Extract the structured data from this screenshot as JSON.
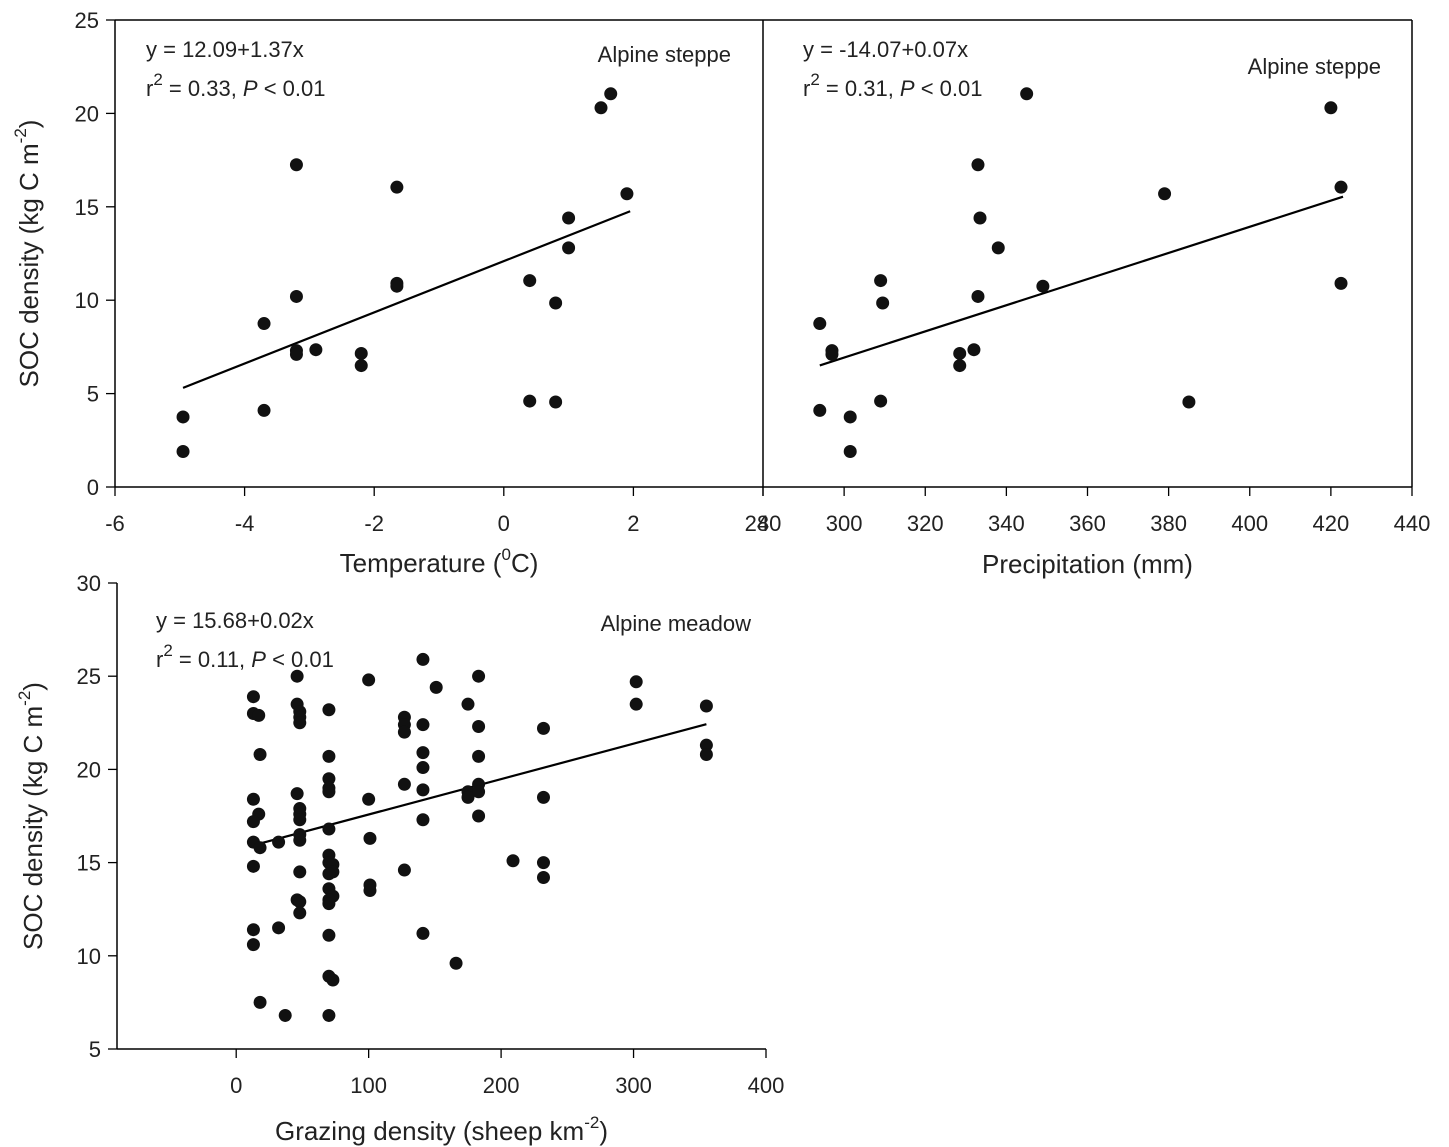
{
  "chart_data": [
    {
      "type": "scatter",
      "title": "Alpine steppe",
      "xlabel": "Temperature (°C)",
      "xlabel_parts": {
        "pre": "Temperature (",
        "sup": "0",
        "post": "C)"
      },
      "ylabel": "SOC density (kg C m⁻²)",
      "ylabel_parts": {
        "pre": "SOC density (kg C m",
        "sup": "-2",
        "post": ")"
      },
      "xlim": [
        -6,
        4
      ],
      "ylim": [
        0,
        25
      ],
      "xticks": [
        -6,
        -4,
        -2,
        0,
        2,
        4
      ],
      "yticks": [
        0,
        5,
        10,
        15,
        20,
        25
      ],
      "xticklabels": [
        "-6",
        "-4",
        "-2",
        "0",
        "2",
        "4"
      ],
      "yticklabels": [
        "0",
        "5",
        "10",
        "15",
        "20",
        "25"
      ],
      "equation": "y = 12.09+1.37x",
      "stats": {
        "r_prefix": "r",
        "r_sup": "2",
        "r_value": " = 0.33, ",
        "p_label": "P",
        "p_value": " < 0.01"
      },
      "grid": false,
      "fit": {
        "intercept": 12.09,
        "slope": 1.37,
        "x_range": [
          -4.95,
          1.95
        ]
      },
      "points": [
        {
          "x": -4.95,
          "y": 3.75
        },
        {
          "x": -4.95,
          "y": 1.9
        },
        {
          "x": -3.7,
          "y": 8.75
        },
        {
          "x": -3.7,
          "y": 4.1
        },
        {
          "x": -3.2,
          "y": 17.25
        },
        {
          "x": -3.2,
          "y": 10.2
        },
        {
          "x": -3.2,
          "y": 7.3
        },
        {
          "x": -3.2,
          "y": 7.1
        },
        {
          "x": -2.9,
          "y": 7.35
        },
        {
          "x": -2.2,
          "y": 7.15
        },
        {
          "x": -2.2,
          "y": 6.5
        },
        {
          "x": -1.65,
          "y": 16.05
        },
        {
          "x": -1.65,
          "y": 10.9
        },
        {
          "x": -1.65,
          "y": 10.75
        },
        {
          "x": 0.4,
          "y": 11.05
        },
        {
          "x": 0.4,
          "y": 4.6
        },
        {
          "x": 0.8,
          "y": 9.85
        },
        {
          "x": 0.8,
          "y": 4.55
        },
        {
          "x": 1.0,
          "y": 14.4
        },
        {
          "x": 1.0,
          "y": 12.8
        },
        {
          "x": 1.5,
          "y": 20.3
        },
        {
          "x": 1.65,
          "y": 21.05
        },
        {
          "x": 1.9,
          "y": 15.7
        }
      ]
    },
    {
      "type": "scatter",
      "title": "Alpine steppe",
      "xlabel": "Precipitation (mm)",
      "ylabel": "",
      "xlim": [
        280,
        440
      ],
      "ylim": [
        0,
        25
      ],
      "xticks": [
        280,
        300,
        320,
        340,
        360,
        380,
        400,
        420,
        440
      ],
      "xticklabels": [
        "280",
        "300",
        "320",
        "340",
        "360",
        "380",
        "400",
        "420",
        "440"
      ],
      "equation": "y = -14.07+0.07x",
      "stats": {
        "r_prefix": "r",
        "r_sup": "2",
        "r_value": " = 0.31, ",
        "p_label": "P",
        "p_value": " < 0.01"
      },
      "grid": false,
      "fit": {
        "intercept": -14.07,
        "slope": 0.07,
        "x_range": [
          294,
          423
        ]
      },
      "points": [
        {
          "x": 294,
          "y": 8.75
        },
        {
          "x": 294,
          "y": 4.1
        },
        {
          "x": 297,
          "y": 7.3
        },
        {
          "x": 297,
          "y": 7.1
        },
        {
          "x": 301.5,
          "y": 3.75
        },
        {
          "x": 301.5,
          "y": 1.9
        },
        {
          "x": 309,
          "y": 11.05
        },
        {
          "x": 309,
          "y": 4.6
        },
        {
          "x": 309.5,
          "y": 9.85
        },
        {
          "x": 328.5,
          "y": 7.15
        },
        {
          "x": 328.5,
          "y": 6.5
        },
        {
          "x": 332,
          "y": 7.35
        },
        {
          "x": 333,
          "y": 17.25
        },
        {
          "x": 333,
          "y": 10.2
        },
        {
          "x": 333.5,
          "y": 14.4
        },
        {
          "x": 338,
          "y": 12.8
        },
        {
          "x": 345,
          "y": 21.05
        },
        {
          "x": 349,
          "y": 10.75
        },
        {
          "x": 379,
          "y": 15.7
        },
        {
          "x": 385,
          "y": 4.55
        },
        {
          "x": 420,
          "y": 20.3
        },
        {
          "x": 422.5,
          "y": 16.05
        },
        {
          "x": 422.5,
          "y": 10.9
        }
      ]
    },
    {
      "type": "scatter",
      "title": "Alpine meadow",
      "xlabel": "Grazing density (sheep km⁻²)",
      "xlabel_parts": {
        "pre": "Grazing density (sheep km",
        "sup": "-2",
        "post": ")"
      },
      "ylabel": "SOC density (kg C m⁻²)",
      "ylabel_parts": {
        "pre": "SOC density (kg C m",
        "sup": "-2",
        "post": ")"
      },
      "xlim": [
        -90,
        400
      ],
      "ylim": [
        5,
        30
      ],
      "xticks": [
        0,
        100,
        200,
        300,
        400
      ],
      "yticks": [
        5,
        10,
        15,
        20,
        25,
        30
      ],
      "xticklabels": [
        "0",
        "100",
        "200",
        "300",
        "400"
      ],
      "yticklabels": [
        "5",
        "10",
        "15",
        "20",
        "25",
        "30"
      ],
      "equation": "y = 15.68+0.02x",
      "stats": {
        "r_prefix": "r",
        "r_sup": "2",
        "r_value": " = 0.11, ",
        "p_label": "P",
        "p_value": " < 0.01"
      },
      "grid": false,
      "fit": {
        "intercept": 15.68,
        "slope": 0.019,
        "x_range": [
          15,
          355
        ]
      },
      "points": [
        {
          "x": 13,
          "y": 23.9
        },
        {
          "x": 13,
          "y": 23
        },
        {
          "x": 17,
          "y": 22.9
        },
        {
          "x": 18,
          "y": 20.8
        },
        {
          "x": 13,
          "y": 18.4
        },
        {
          "x": 17,
          "y": 17.6
        },
        {
          "x": 13,
          "y": 17.2
        },
        {
          "x": 13,
          "y": 16.1
        },
        {
          "x": 18,
          "y": 15.8
        },
        {
          "x": 13,
          "y": 14.8
        },
        {
          "x": 13,
          "y": 11.4
        },
        {
          "x": 13,
          "y": 10.6
        },
        {
          "x": 18,
          "y": 7.5
        },
        {
          "x": 32,
          "y": 16.1
        },
        {
          "x": 32,
          "y": 11.5
        },
        {
          "x": 37,
          "y": 6.8
        },
        {
          "x": 46,
          "y": 25
        },
        {
          "x": 46,
          "y": 23.5
        },
        {
          "x": 48,
          "y": 23.1
        },
        {
          "x": 48,
          "y": 22.8
        },
        {
          "x": 48,
          "y": 22.5
        },
        {
          "x": 46,
          "y": 18.7
        },
        {
          "x": 48,
          "y": 17.9
        },
        {
          "x": 48,
          "y": 17.6
        },
        {
          "x": 48,
          "y": 17.3
        },
        {
          "x": 48,
          "y": 16.5
        },
        {
          "x": 48,
          "y": 16.2
        },
        {
          "x": 48,
          "y": 14.5
        },
        {
          "x": 46,
          "y": 13
        },
        {
          "x": 48,
          "y": 12.9
        },
        {
          "x": 48,
          "y": 12.3
        },
        {
          "x": 70,
          "y": 23.2
        },
        {
          "x": 70,
          "y": 20.7
        },
        {
          "x": 70,
          "y": 19.5
        },
        {
          "x": 70,
          "y": 19
        },
        {
          "x": 70,
          "y": 18.8
        },
        {
          "x": 70,
          "y": 16.8
        },
        {
          "x": 70,
          "y": 15.4
        },
        {
          "x": 70,
          "y": 15
        },
        {
          "x": 73,
          "y": 14.9
        },
        {
          "x": 73,
          "y": 14.5
        },
        {
          "x": 70,
          "y": 14.4
        },
        {
          "x": 70,
          "y": 13.6
        },
        {
          "x": 73,
          "y": 13.2
        },
        {
          "x": 70,
          "y": 13
        },
        {
          "x": 70,
          "y": 12.8
        },
        {
          "x": 70,
          "y": 11.1
        },
        {
          "x": 70,
          "y": 8.9
        },
        {
          "x": 73,
          "y": 8.7
        },
        {
          "x": 70,
          "y": 6.8
        },
        {
          "x": 100,
          "y": 24.8
        },
        {
          "x": 100,
          "y": 18.4
        },
        {
          "x": 101,
          "y": 16.3
        },
        {
          "x": 101,
          "y": 13.8
        },
        {
          "x": 101,
          "y": 13.5
        },
        {
          "x": 127,
          "y": 22.8
        },
        {
          "x": 127,
          "y": 22.4
        },
        {
          "x": 127,
          "y": 22
        },
        {
          "x": 127,
          "y": 19.2
        },
        {
          "x": 127,
          "y": 14.6
        },
        {
          "x": 141,
          "y": 25.9
        },
        {
          "x": 141,
          "y": 22.4
        },
        {
          "x": 141,
          "y": 20.9
        },
        {
          "x": 141,
          "y": 20.1
        },
        {
          "x": 141,
          "y": 18.9
        },
        {
          "x": 141,
          "y": 17.3
        },
        {
          "x": 141,
          "y": 11.2
        },
        {
          "x": 151,
          "y": 24.4
        },
        {
          "x": 166,
          "y": 9.6
        },
        {
          "x": 175,
          "y": 23.5
        },
        {
          "x": 175,
          "y": 18.8
        },
        {
          "x": 175,
          "y": 18.5
        },
        {
          "x": 183,
          "y": 25
        },
        {
          "x": 183,
          "y": 22.3
        },
        {
          "x": 183,
          "y": 20.7
        },
        {
          "x": 183,
          "y": 19.2
        },
        {
          "x": 183,
          "y": 18.8
        },
        {
          "x": 183,
          "y": 17.5
        },
        {
          "x": 209,
          "y": 15.1
        },
        {
          "x": 232,
          "y": 22.2
        },
        {
          "x": 232,
          "y": 18.5
        },
        {
          "x": 232,
          "y": 15
        },
        {
          "x": 232,
          "y": 14.2
        },
        {
          "x": 302,
          "y": 24.7
        },
        {
          "x": 302,
          "y": 23.5
        },
        {
          "x": 355,
          "y": 23.4
        },
        {
          "x": 355,
          "y": 21.3
        },
        {
          "x": 355,
          "y": 20.8
        }
      ]
    }
  ]
}
